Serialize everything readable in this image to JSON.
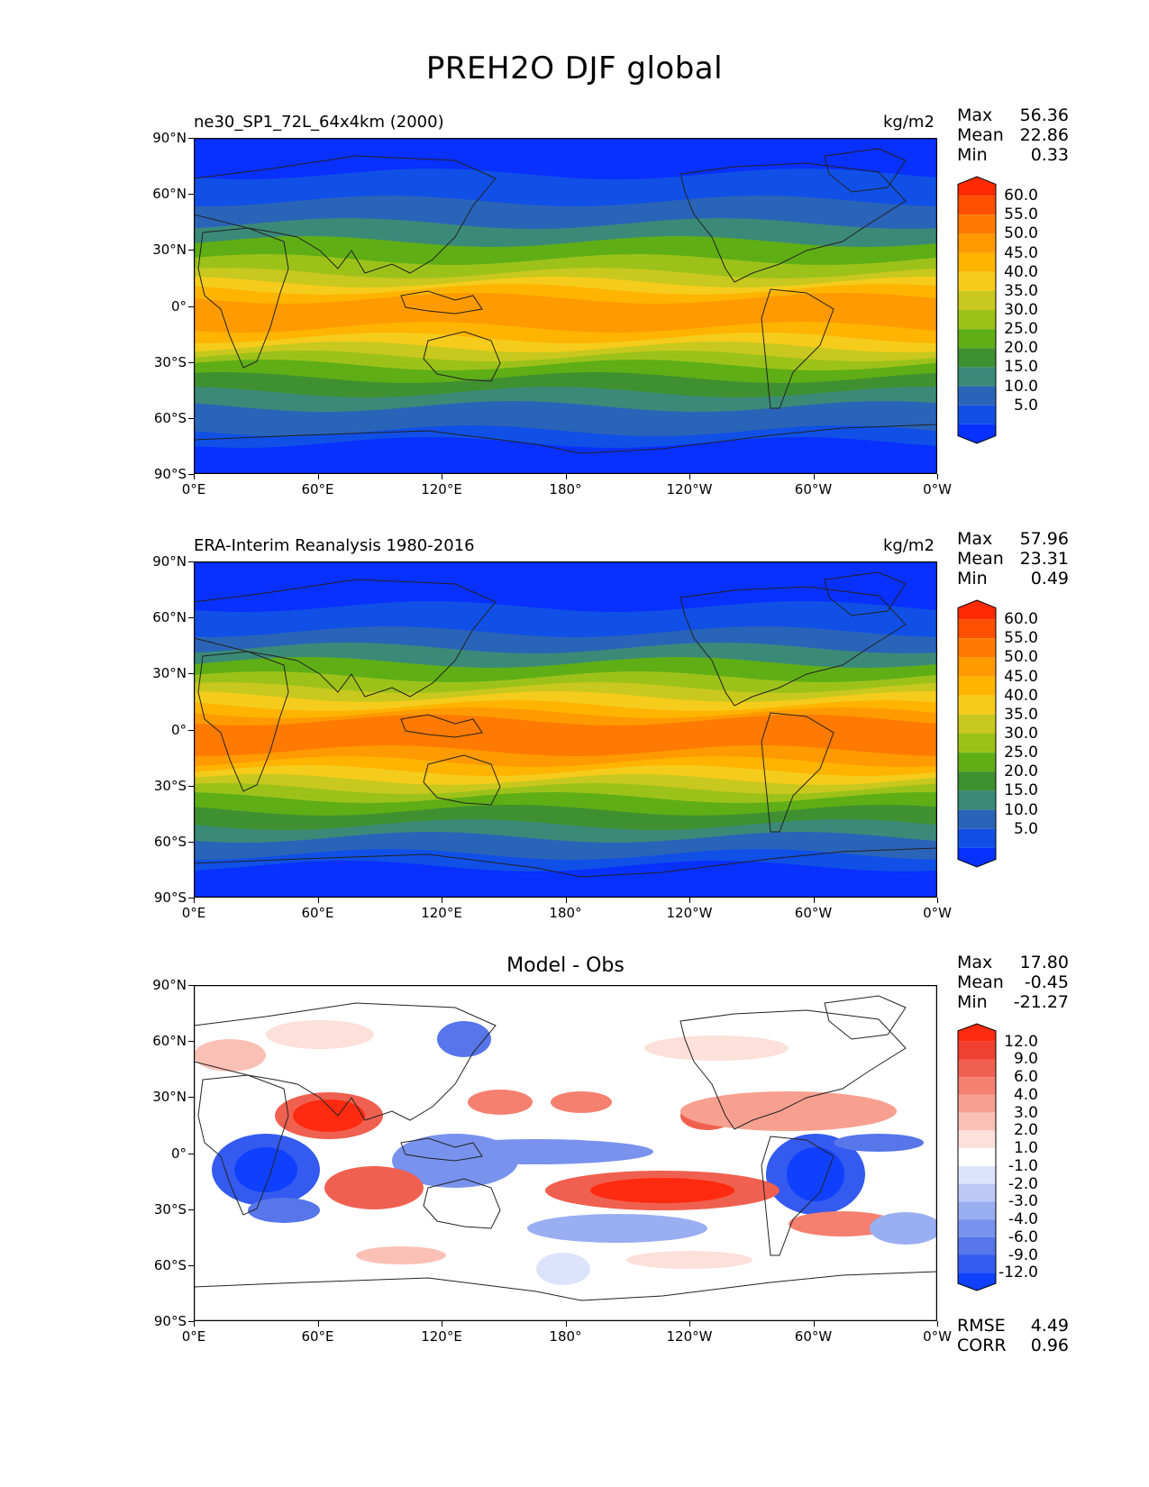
{
  "figure": {
    "title": "PREH2O DJF global",
    "lat_ticks": [
      "90°N",
      "60°N",
      "30°N",
      "0°",
      "30°S",
      "60°S",
      "90°S"
    ],
    "lon_ticks": [
      "0°E",
      "60°E",
      "120°E",
      "180°",
      "120°W",
      "60°W",
      "0°W"
    ]
  },
  "panels": [
    {
      "id": "model",
      "label": "ne30_SP1_72L_64x4km (2000)",
      "units": "kg/m2",
      "center_title": "",
      "stats": [
        [
          "Max",
          "56.36"
        ],
        [
          "Mean",
          "22.86"
        ],
        [
          "Min",
          "0.33"
        ]
      ],
      "extra_stats": [],
      "colorbar_labels": [
        "60.0",
        "55.0",
        "50.0",
        "45.0",
        "40.0",
        "35.0",
        "30.0",
        "25.0",
        "20.0",
        "15.0",
        "10.0",
        "5.0"
      ],
      "colorbar_colors": [
        "#ff2a00",
        "#ff4f00",
        "#ff7a00",
        "#ff9a00",
        "#ffb400",
        "#f5cc1c",
        "#c8c81e",
        "#9cc21a",
        "#5fae16",
        "#3f9030",
        "#3b8a78",
        "#2a64b8",
        "#1050e6",
        "#0830ff"
      ]
    },
    {
      "id": "obs",
      "label": "ERA-Interim Reanalysis 1980-2016",
      "units": "kg/m2",
      "center_title": "",
      "stats": [
        [
          "Max",
          "57.96"
        ],
        [
          "Mean",
          "23.31"
        ],
        [
          "Min",
          "0.49"
        ]
      ],
      "extra_stats": [],
      "colorbar_labels": [
        "60.0",
        "55.0",
        "50.0",
        "45.0",
        "40.0",
        "35.0",
        "30.0",
        "25.0",
        "20.0",
        "15.0",
        "10.0",
        "5.0"
      ],
      "colorbar_colors": [
        "#ff2a00",
        "#ff4f00",
        "#ff7a00",
        "#ff9a00",
        "#ffb400",
        "#f5cc1c",
        "#c8c81e",
        "#9cc21a",
        "#5fae16",
        "#3f9030",
        "#3b8a78",
        "#2a64b8",
        "#1050e6",
        "#0830ff"
      ]
    },
    {
      "id": "diff",
      "label": "",
      "units": "",
      "center_title": "Model - Obs",
      "stats": [
        [
          "Max",
          "17.80"
        ],
        [
          "Mean",
          "-0.45"
        ],
        [
          "Min",
          "-21.27"
        ]
      ],
      "extra_stats": [
        [
          "RMSE",
          "4.49"
        ],
        [
          "CORR",
          "0.96"
        ]
      ],
      "colorbar_labels": [
        "12.0",
        "9.0",
        "6.0",
        "4.0",
        "3.0",
        "2.0",
        "1.0",
        "-1.0",
        "-2.0",
        "-3.0",
        "-4.0",
        "-6.0",
        "-9.0",
        "-12.0"
      ],
      "colorbar_colors": [
        "#ff2a10",
        "#f04030",
        "#f06050",
        "#f58070",
        "#f8a090",
        "#fbc0b5",
        "#fde0da",
        "#ffffff",
        "#dde3fb",
        "#bcc8f6",
        "#9aaef2",
        "#7892ee",
        "#5676ea",
        "#345af0",
        "#1040ff"
      ]
    }
  ]
}
